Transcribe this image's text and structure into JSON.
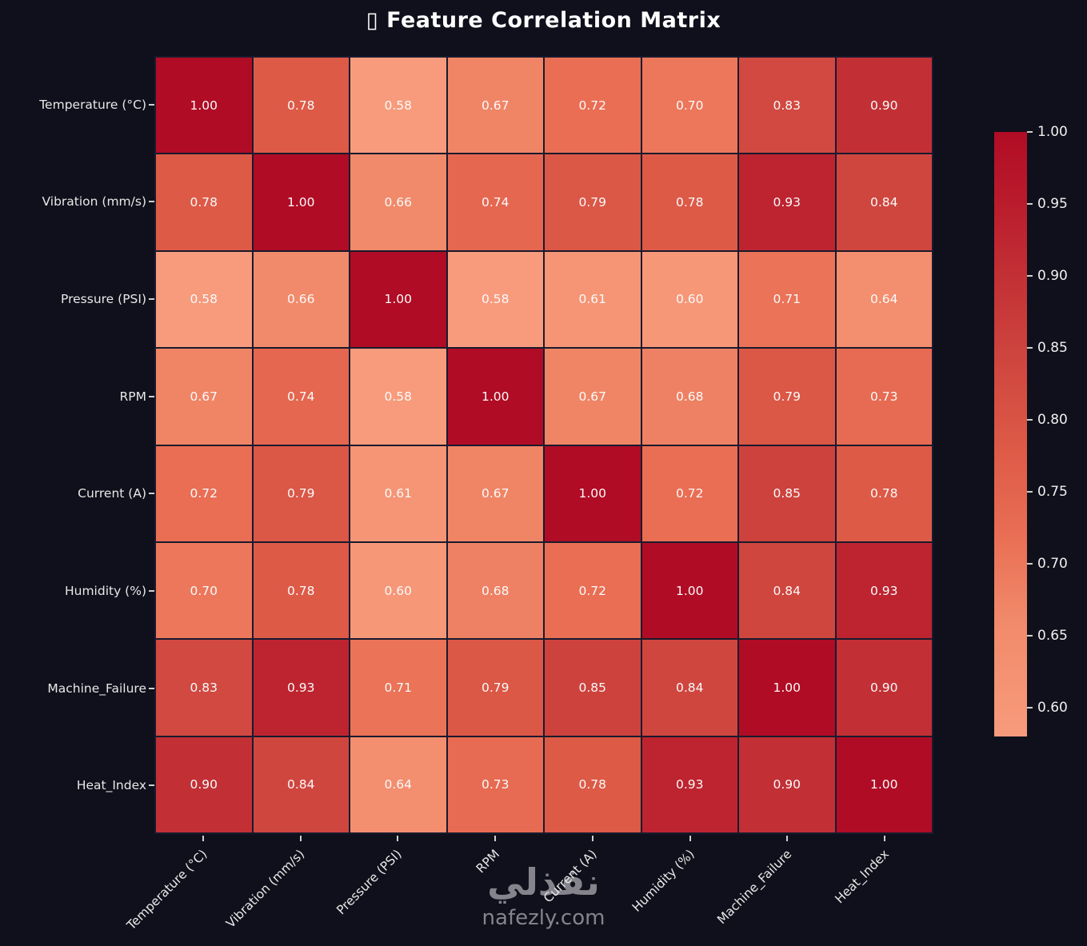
{
  "title": "Feature Correlation Matrix",
  "title_icon": "▯",
  "watermark": {
    "arabic": "نفذلي",
    "domain": "nafezly.com"
  },
  "chart_data": {
    "type": "heatmap",
    "title": "Feature Correlation Matrix",
    "labels": [
      "Temperature (°C)",
      "Vibration (mm/s)",
      "Pressure (PSI)",
      "RPM",
      "Current (A)",
      "Humidity (%)",
      "Machine_Failure",
      "Heat_Index"
    ],
    "matrix": [
      [
        1.0,
        0.78,
        0.58,
        0.67,
        0.72,
        0.7,
        0.83,
        0.9
      ],
      [
        0.78,
        1.0,
        0.66,
        0.74,
        0.79,
        0.78,
        0.93,
        0.84
      ],
      [
        0.58,
        0.66,
        1.0,
        0.58,
        0.61,
        0.6,
        0.71,
        0.64
      ],
      [
        0.67,
        0.74,
        0.58,
        1.0,
        0.67,
        0.68,
        0.79,
        0.73
      ],
      [
        0.72,
        0.79,
        0.61,
        0.67,
        1.0,
        0.72,
        0.85,
        0.78
      ],
      [
        0.7,
        0.78,
        0.6,
        0.68,
        0.72,
        1.0,
        0.84,
        0.93
      ],
      [
        0.83,
        0.93,
        0.71,
        0.79,
        0.85,
        0.84,
        1.0,
        0.9
      ],
      [
        0.9,
        0.84,
        0.64,
        0.73,
        0.78,
        0.93,
        0.9,
        1.0
      ]
    ],
    "vmin": 0.58,
    "vmax": 1.0,
    "colorbar_ticks": [
      1.0,
      0.95,
      0.9,
      0.85,
      0.8,
      0.75,
      0.7,
      0.65,
      0.6
    ],
    "colormap": "Reds",
    "grid_line_color": "#181a2e",
    "cell_text_color": "#fafafa",
    "color_anchors": [
      [
        0.58,
        "#f79b7c"
      ],
      [
        0.66,
        "#f18a6a"
      ],
      [
        0.72,
        "#e96e54"
      ],
      [
        0.78,
        "#dd5a47"
      ],
      [
        0.84,
        "#cf463f"
      ],
      [
        0.9,
        "#c23035"
      ],
      [
        0.95,
        "#ba1c2c"
      ],
      [
        1.0,
        "#b10c25"
      ]
    ]
  }
}
